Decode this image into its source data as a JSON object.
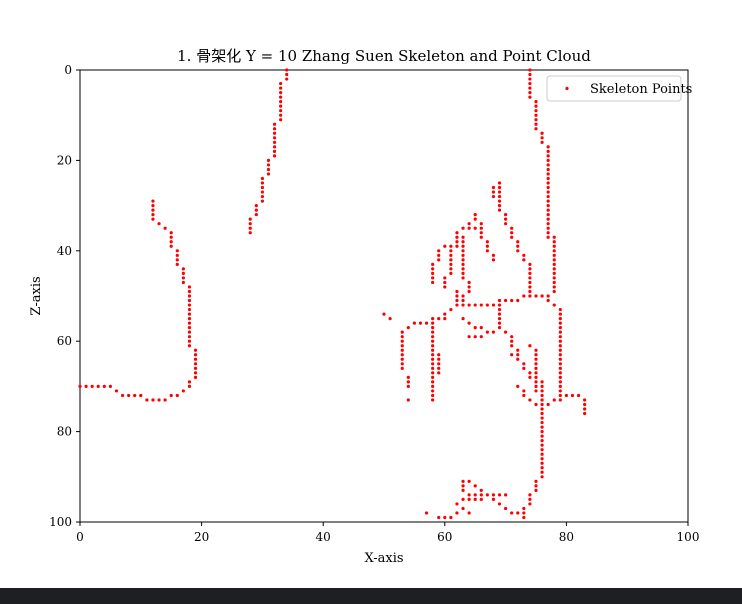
{
  "chart_data": {
    "type": "scatter",
    "title": "1. 骨架化 Y = 10 Zhang Suen Skeleton and Point Cloud",
    "xlabel": "X-axis",
    "ylabel": "Z-axis",
    "xlim": [
      0,
      100
    ],
    "ylim": [
      100,
      0
    ],
    "y_inverted": true,
    "xticks": [
      0,
      20,
      40,
      60,
      80,
      100
    ],
    "yticks": [
      0,
      20,
      40,
      60,
      80,
      100
    ],
    "grid": false,
    "legend_position": "top-right",
    "series": [
      {
        "name": "Skeleton Points",
        "color": "#ff0000",
        "marker": "point",
        "polylines": [
          [
            [
              0,
              70
            ],
            [
              5,
              70
            ],
            [
              6,
              71
            ],
            [
              8,
              72
            ],
            [
              10,
              72
            ],
            [
              11,
              73
            ],
            [
              14,
              73
            ],
            [
              15,
              72
            ],
            [
              17,
              71
            ],
            [
              18,
              70
            ],
            [
              18,
              69
            ],
            [
              19,
              68
            ],
            [
              19,
              62
            ],
            [
              18,
              61
            ],
            [
              18,
              48
            ],
            [
              17,
              47
            ],
            [
              17,
              44
            ],
            [
              16,
              43
            ],
            [
              16,
              40
            ],
            [
              15,
              39
            ],
            [
              15,
              36
            ],
            [
              14,
              35
            ],
            [
              13,
              34
            ],
            [
              12,
              33
            ],
            [
              12,
              29
            ]
          ],
          [
            [
              28,
              36
            ],
            [
              28,
              33
            ],
            [
              29,
              32
            ],
            [
              29,
              30
            ],
            [
              30,
              29
            ],
            [
              30,
              24
            ],
            [
              31,
              23
            ],
            [
              31,
              20
            ],
            [
              32,
              19
            ],
            [
              32,
              12
            ],
            [
              33,
              11
            ],
            [
              33,
              3
            ],
            [
              34,
              2
            ],
            [
              34,
              0
            ]
          ],
          [
            [
              74,
              0
            ],
            [
              74,
              6
            ],
            [
              75,
              7
            ],
            [
              75,
              13
            ],
            [
              76,
              14
            ],
            [
              76,
              16
            ],
            [
              77,
              17
            ],
            [
              77,
              37
            ]
          ],
          [
            [
              78,
              37
            ],
            [
              78,
              49
            ],
            [
              77,
              50
            ]
          ],
          [
            [
              50,
              54
            ],
            [
              51,
              55
            ]
          ],
          [
            [
              53,
              58
            ],
            [
              53,
              66
            ]
          ],
          [
            [
              54,
              68
            ],
            [
              54,
              70
            ]
          ],
          [
            [
              54,
              73
            ]
          ],
          [
            [
              53,
              58
            ],
            [
              54,
              57
            ],
            [
              55,
              56
            ],
            [
              58,
              56
            ],
            [
              58,
              62
            ],
            [
              59,
              63
            ],
            [
              59,
              67
            ]
          ],
          [
            [
              58,
              55
            ],
            [
              58,
              73
            ]
          ],
          [
            [
              58,
              55
            ],
            [
              60,
              55
            ],
            [
              60,
              54
            ],
            [
              61,
              53
            ],
            [
              62,
              52
            ],
            [
              62,
              49
            ]
          ],
          [
            [
              58,
              47
            ],
            [
              58,
              43
            ],
            [
              59,
              42
            ],
            [
              59,
              40
            ],
            [
              60,
              39
            ],
            [
              62,
              38
            ],
            [
              62,
              36
            ],
            [
              63,
              35
            ],
            [
              64,
              34
            ],
            [
              65,
              33
            ],
            [
              65,
              32
            ]
          ],
          [
            [
              60,
              48
            ],
            [
              60,
              46
            ],
            [
              61,
              45
            ],
            [
              61,
              40
            ],
            [
              62,
              39
            ]
          ],
          [
            [
              63,
              37
            ],
            [
              63,
              46
            ],
            [
              64,
              47
            ],
            [
              64,
              49
            ],
            [
              63,
              50
            ],
            [
              63,
              52
            ],
            [
              68,
              52
            ],
            [
              69,
              51
            ],
            [
              72,
              51
            ],
            [
              73,
              50
            ],
            [
              76,
              50
            ],
            [
              77,
              51
            ],
            [
              78,
              52
            ],
            [
              79,
              53
            ],
            [
              79,
              56
            ]
          ],
          [
            [
              64,
              35
            ],
            [
              66,
              35
            ],
            [
              66,
              37
            ],
            [
              67,
              38
            ],
            [
              67,
              40
            ],
            [
              68,
              41
            ],
            [
              68,
              42
            ]
          ],
          [
            [
              63,
              55
            ],
            [
              65,
              57
            ],
            [
              68,
              58
            ],
            [
              69,
              57
            ],
            [
              70,
              58
            ]
          ],
          [
            [
              66,
              36
            ],
            [
              66,
              34
            ]
          ],
          [
            [
              68,
              28
            ],
            [
              68,
              26
            ]
          ],
          [
            [
              69,
              25
            ],
            [
              69,
              31
            ],
            [
              70,
              32
            ],
            [
              70,
              34
            ],
            [
              71,
              35
            ],
            [
              71,
              37
            ],
            [
              72,
              38
            ],
            [
              72,
              40
            ],
            [
              73,
              41
            ],
            [
              73,
              42
            ],
            [
              74,
              43
            ],
            [
              74,
              50
            ]
          ],
          [
            [
              69,
              52
            ],
            [
              69,
              57
            ],
            [
              70,
              58
            ],
            [
              71,
              59
            ],
            [
              71,
              61
            ],
            [
              72,
              62
            ],
            [
              72,
              64
            ],
            [
              73,
              65
            ],
            [
              73,
              66
            ],
            [
              74,
              67
            ],
            [
              74,
              68
            ],
            [
              75,
              69
            ],
            [
              75,
              71
            ],
            [
              76,
              72
            ],
            [
              76,
              74
            ]
          ],
          [
            [
              74,
              61
            ],
            [
              75,
              62
            ],
            [
              75,
              68
            ],
            [
              76,
              69
            ],
            [
              76,
              72
            ]
          ],
          [
            [
              65,
              59
            ],
            [
              67,
              58
            ]
          ],
          [
            [
              64,
              59
            ]
          ],
          [
            [
              71,
              63
            ]
          ],
          [
            [
              72,
              70
            ],
            [
              73,
              72
            ],
            [
              75,
              74
            ],
            [
              76,
              75
            ],
            [
              77,
              74
            ],
            [
              78,
              73
            ],
            [
              80,
              72
            ],
            [
              82,
              72
            ],
            [
              83,
              73
            ],
            [
              83,
              76
            ]
          ],
          [
            [
              79,
              56
            ],
            [
              79,
              72
            ]
          ],
          [
            [
              76,
              75
            ],
            [
              76,
              90
            ],
            [
              75,
              91
            ],
            [
              75,
              93
            ],
            [
              74,
              94
            ],
            [
              74,
              96
            ],
            [
              73,
              97
            ],
            [
              73,
              99
            ]
          ],
          [
            [
              72,
              98
            ],
            [
              70,
              97
            ],
            [
              69,
              96
            ],
            [
              68,
              95
            ],
            [
              67,
              94
            ],
            [
              64,
              94
            ],
            [
              63,
              93
            ],
            [
              63,
              91
            ],
            [
              64,
              91
            ],
            [
              65,
              92
            ],
            [
              66,
              93
            ]
          ],
          [
            [
              57,
              98
            ]
          ],
          [
            [
              59,
              99
            ],
            [
              61,
              99
            ],
            [
              62,
              98
            ],
            [
              63,
              97
            ],
            [
              64,
              98
            ]
          ],
          [
            [
              62,
              96
            ],
            [
              63,
              95
            ],
            [
              66,
              95
            ],
            [
              66,
              94
            ]
          ],
          [
            [
              68,
              94
            ],
            [
              70,
              94
            ]
          ]
        ]
      }
    ]
  }
}
